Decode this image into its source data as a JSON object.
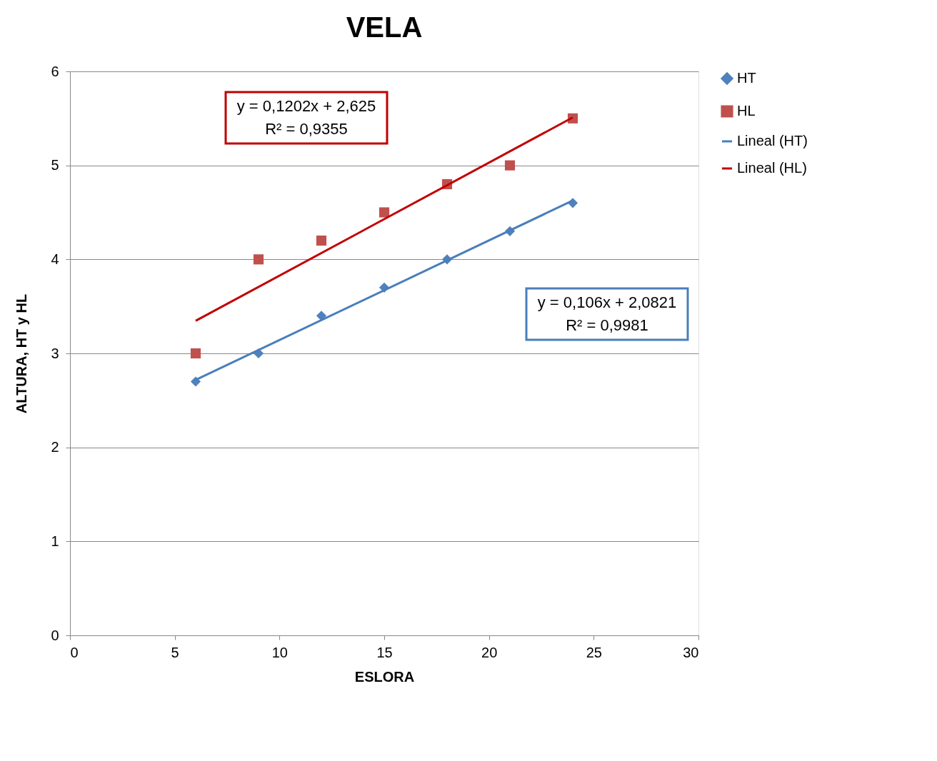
{
  "chart_data": {
    "type": "scatter",
    "title": "VELA",
    "xlabel": "ESLORA",
    "ylabel": "ALTURA, HT y HL",
    "xlim": [
      0,
      30
    ],
    "xticks": [
      0,
      5,
      10,
      15,
      20,
      25,
      30
    ],
    "ylim": [
      0,
      6
    ],
    "yticks": [
      0,
      1,
      2,
      3,
      4,
      5,
      6
    ],
    "grid": "y",
    "legend": "right",
    "series": [
      {
        "name": "HT",
        "marker": "diamond",
        "color": "#4f81bd",
        "x": [
          6,
          9,
          12,
          15,
          18,
          21,
          24
        ],
        "values": [
          2.7,
          3.0,
          3.4,
          3.7,
          4.0,
          4.3,
          4.6
        ]
      },
      {
        "name": "HL",
        "marker": "square",
        "color": "#c0504d",
        "x": [
          6,
          9,
          12,
          15,
          18,
          21,
          24
        ],
        "values": [
          3.0,
          4.0,
          4.2,
          4.5,
          4.8,
          5.0,
          5.5
        ]
      },
      {
        "name": "Lineal (HT)",
        "type": "line",
        "marker": "none",
        "color": "#4a7ebb",
        "x": [
          6,
          24
        ],
        "values": [
          2.718,
          4.626
        ]
      },
      {
        "name": "Lineal (HL)",
        "type": "line",
        "marker": "none",
        "color": "#c00000",
        "x": [
          6,
          24
        ],
        "values": [
          3.346,
          5.51
        ]
      }
    ],
    "annotations": [
      "y = 0,106x + 2,0821\nR² = 0,9981",
      "y = 0,1202x + 2,625\nR² = 0,9355"
    ]
  }
}
